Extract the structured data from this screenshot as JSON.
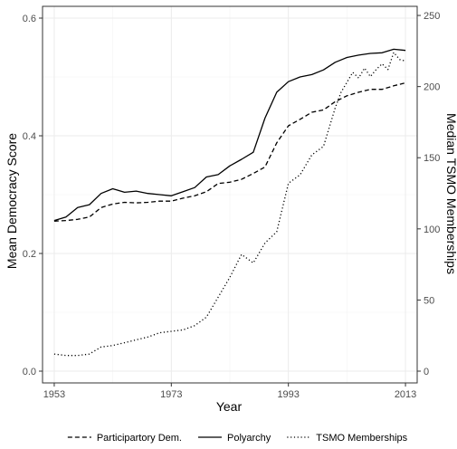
{
  "chart_data": {
    "type": "line",
    "xlabel": "Year",
    "ylabel_left": "Mean Democracy Score",
    "ylabel_right": "Median TSMO Memberships",
    "xlim": [
      1951,
      2015
    ],
    "ylim_left": [
      -0.02,
      0.62
    ],
    "ylim_right": [
      -8.27,
      256.4
    ],
    "x_ticks": [
      1953,
      1973,
      1993,
      2013
    ],
    "y_left_ticks": [
      0.0,
      0.2,
      0.4,
      0.6
    ],
    "y_left_tick_labels": [
      "0.0",
      "0.2",
      "0.4",
      "0.6"
    ],
    "y_right_ticks": [
      0,
      50,
      100,
      150,
      200,
      250
    ],
    "grid": true,
    "legend_position": "bottom",
    "series": [
      {
        "name": "Participartory Dem.",
        "axis": "left",
        "line_style": "dashed",
        "x": [
          1953,
          1955,
          1957,
          1959,
          1961,
          1963,
          1965,
          1967,
          1969,
          1971,
          1973,
          1975,
          1977,
          1979,
          1981,
          1983,
          1985,
          1987,
          1989,
          1991,
          1993,
          1995,
          1997,
          1999,
          2001,
          2003,
          2005,
          2007,
          2009,
          2011,
          2013
        ],
        "values": [
          0.255,
          0.256,
          0.258,
          0.262,
          0.278,
          0.284,
          0.287,
          0.286,
          0.287,
          0.289,
          0.289,
          0.294,
          0.298,
          0.305,
          0.319,
          0.321,
          0.326,
          0.336,
          0.347,
          0.388,
          0.417,
          0.428,
          0.44,
          0.444,
          0.458,
          0.468,
          0.474,
          0.479,
          0.479,
          0.485,
          0.49
        ]
      },
      {
        "name": "Polyarchy",
        "axis": "left",
        "line_style": "solid",
        "x": [
          1953,
          1955,
          1957,
          1959,
          1961,
          1963,
          1965,
          1967,
          1969,
          1971,
          1973,
          1975,
          1977,
          1979,
          1981,
          1983,
          1985,
          1987,
          1989,
          1991,
          1993,
          1995,
          1997,
          1999,
          2001,
          2003,
          2005,
          2007,
          2009,
          2011,
          2013
        ],
        "values": [
          0.256,
          0.262,
          0.278,
          0.283,
          0.302,
          0.31,
          0.304,
          0.306,
          0.302,
          0.3,
          0.298,
          0.305,
          0.312,
          0.33,
          0.334,
          0.349,
          0.36,
          0.372,
          0.43,
          0.474,
          0.492,
          0.5,
          0.504,
          0.512,
          0.525,
          0.533,
          0.537,
          0.54,
          0.541,
          0.547,
          0.545
        ]
      },
      {
        "name": "TSMO Memberships",
        "axis": "right",
        "line_style": "dotted",
        "x": [
          1953,
          1955,
          1957,
          1959,
          1961,
          1963,
          1965,
          1967,
          1969,
          1971,
          1973,
          1975,
          1977,
          1979,
          1981,
          1983,
          1985,
          1987,
          1989,
          1991,
          1993,
          1995,
          1997,
          1999,
          2001,
          2002,
          2003,
          2004,
          2005,
          2006,
          2007,
          2008,
          2009,
          2010,
          2011,
          2012,
          2013
        ],
        "values": [
          12,
          11,
          11,
          12,
          17,
          18,
          20,
          22,
          24,
          27,
          28,
          29,
          32,
          38,
          52,
          66,
          82,
          76,
          90,
          98,
          132,
          138,
          152,
          158,
          185,
          196,
          203,
          210,
          206,
          213,
          207,
          212,
          216,
          212,
          224,
          219,
          218
        ]
      }
    ]
  }
}
